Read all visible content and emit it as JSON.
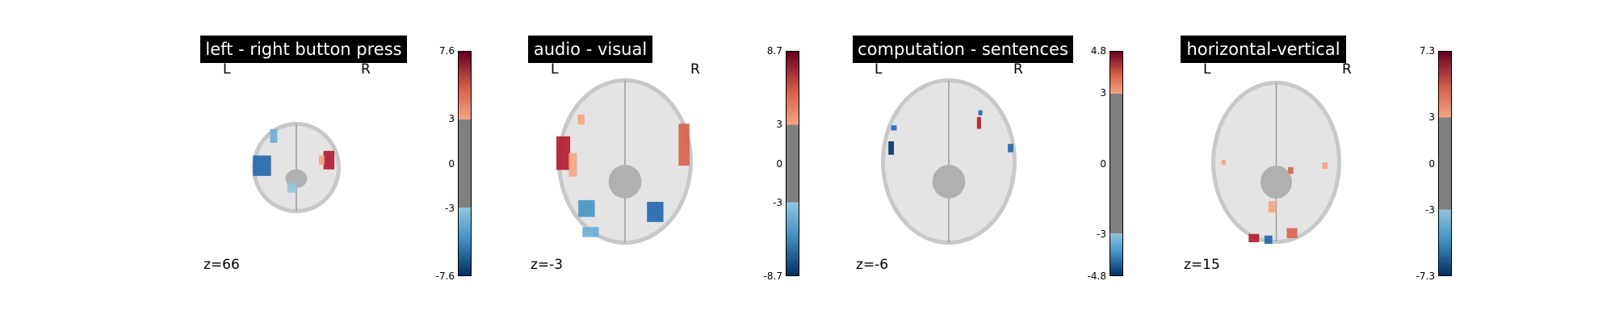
{
  "chart_data": [
    {
      "type": "heatmap",
      "title": "left - right button press",
      "orientation_labels": {
        "left": "L",
        "right": "R"
      },
      "slice_label": "z=66",
      "colorbar": {
        "vmin": -7.6,
        "vmax": 7.6,
        "threshold": 3,
        "ticks": [
          7.6,
          3,
          0,
          -3,
          -7.6
        ],
        "tick_labels": [
          "7.6",
          "3",
          "0",
          "-3",
          "-7.6"
        ]
      },
      "colormap": "RdBu_r"
    },
    {
      "type": "heatmap",
      "title": "audio - visual",
      "orientation_labels": {
        "left": "L",
        "right": "R"
      },
      "slice_label": "z=-3",
      "colorbar": {
        "vmin": -8.7,
        "vmax": 8.7,
        "threshold": 3,
        "ticks": [
          8.7,
          3,
          0,
          -3,
          -8.7
        ],
        "tick_labels": [
          "8.7",
          "3",
          "0",
          "-3",
          "-8.7"
        ]
      },
      "colormap": "RdBu_r"
    },
    {
      "type": "heatmap",
      "title": "computation - sentences",
      "orientation_labels": {
        "left": "L",
        "right": "R"
      },
      "slice_label": "z=-6",
      "colorbar": {
        "vmin": -4.8,
        "vmax": 4.8,
        "threshold": 3,
        "ticks": [
          4.8,
          3,
          0,
          -3,
          -4.8
        ],
        "tick_labels": [
          "4.8",
          "3",
          "0",
          "-3",
          "-4.8"
        ]
      },
      "colormap": "RdBu_r"
    },
    {
      "type": "heatmap",
      "title": "horizontal-vertical",
      "orientation_labels": {
        "left": "L",
        "right": "R"
      },
      "slice_label": "z=15",
      "colorbar": {
        "vmin": -7.3,
        "vmax": 7.3,
        "threshold": 3,
        "ticks": [
          7.3,
          3,
          0,
          -3,
          -7.3
        ],
        "tick_labels": [
          "7.3",
          "3",
          "0",
          "-3",
          "-7.3"
        ]
      },
      "colormap": "RdBu_r"
    }
  ],
  "colors": {
    "gray_band": "#808080",
    "pos_low": "#f4a582",
    "pos_high": "#67001f",
    "neg_low": "#92c5de",
    "neg_high": "#053061",
    "title_bg": "#000000"
  }
}
